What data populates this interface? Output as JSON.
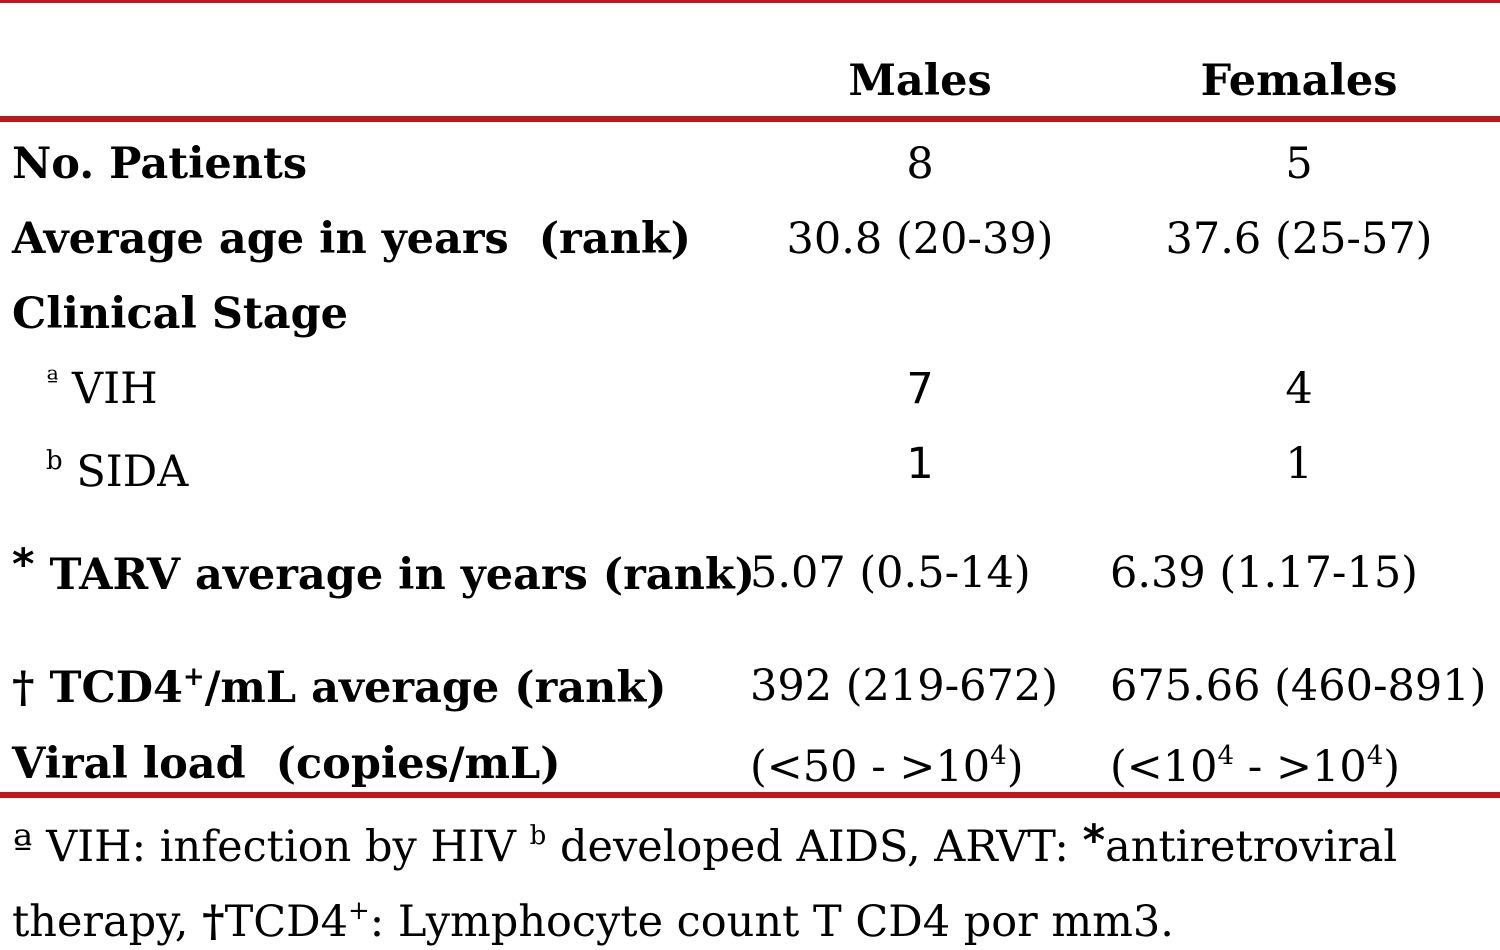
{
  "table": {
    "columns": [
      "",
      "Males",
      "Females"
    ],
    "rows": [
      {
        "label": "No. Patients",
        "males": "8",
        "females": "5"
      },
      {
        "label": "Average age in years  (rank)",
        "males": "30.8 (20-39)",
        "females": "37.6 (25-57)"
      },
      {
        "label": "Clinical Stage"
      },
      {
        "marker": "ª",
        "label": "VIH",
        "males": "7",
        "females": "4"
      },
      {
        "marker": "b",
        "label": "SIDA",
        "males": "1",
        "females": "1"
      },
      {
        "marker": "*",
        "label": "TARV average in years (rank)",
        "males": "5.07 (0.5-14)",
        "females": "6.39 (1.17-15)"
      },
      {
        "marker": "†",
        "label_a": "TCD4",
        "label_sup": "+",
        "label_b": "/mL average (rank)",
        "males": "392 (219-672)",
        "females": "675.66 (460-891)"
      },
      {
        "label": "Viral load  (copies/mL)",
        "males_a": "(<50 - >10",
        "males_sup": "4",
        "males_b": ")",
        "females_a": "(<10",
        "females_sup1": "4",
        "females_mid": " - >10",
        "females_sup2": "4",
        "females_b": ")"
      }
    ]
  },
  "footnote": {
    "line1_a": "ª VIH: infection by HIV ",
    "line1_sup": "b",
    "line1_b": " developed AIDS, ARVT: ",
    "line1_star": "*",
    "line1_c": "antiretroviral",
    "line2_a": "therapy, ",
    "line2_dagger": "†",
    "line2_b": "TCD4",
    "line2_sup": "+",
    "line2_c": ": Lymphocyte count T CD4 por mm3."
  }
}
